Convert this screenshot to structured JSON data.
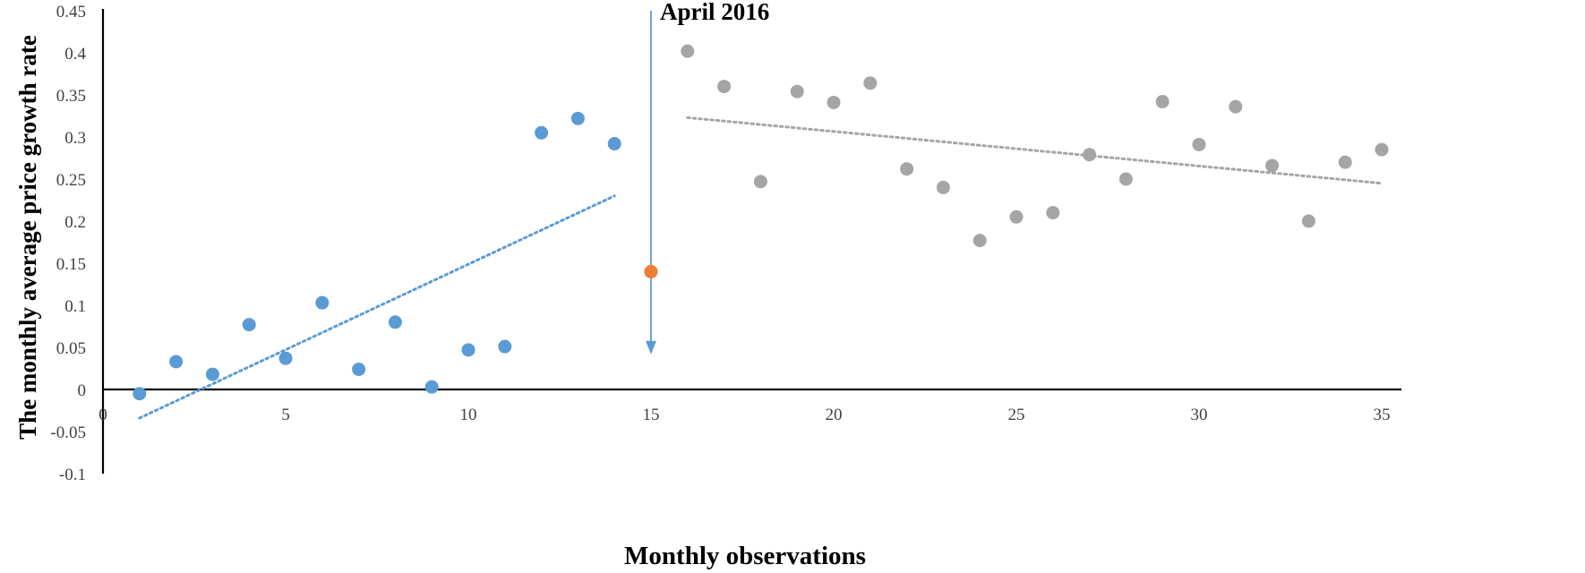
{
  "chart_data": {
    "type": "scatter",
    "title": "",
    "xlabel": "Monthly observations",
    "ylabel": "The monthly average price growth rate",
    "xlim": [
      0,
      35
    ],
    "ylim": [
      -0.1,
      0.45
    ],
    "x_ticks": [
      0,
      5,
      10,
      15,
      20,
      25,
      30,
      35
    ],
    "y_ticks": [
      -0.1,
      -0.05,
      0,
      0.05,
      0.1,
      0.15,
      0.2,
      0.25,
      0.3,
      0.35,
      0.4,
      0.45
    ],
    "grid": false,
    "legend": "none",
    "series": [
      {
        "color": "#5b9bd5",
        "x": [
          1,
          2,
          3,
          4,
          5,
          6,
          7,
          8,
          9,
          10,
          11,
          12,
          13,
          14
        ],
        "y": [
          -0.005,
          0.033,
          0.018,
          0.077,
          0.037,
          0.103,
          0.024,
          0.08,
          0.003,
          0.047,
          0.051,
          0.305,
          0.322,
          0.292
        ]
      },
      {
        "color": "#ed7d31",
        "x": [
          15
        ],
        "y": [
          0.14
        ]
      },
      {
        "color": "#a5a5a5",
        "x": [
          16,
          17,
          18,
          19,
          20,
          21,
          22,
          23,
          24,
          25,
          26,
          27,
          28,
          29,
          30,
          31,
          32,
          33,
          34,
          35
        ],
        "y": [
          0.402,
          0.36,
          0.247,
          0.354,
          0.341,
          0.364,
          0.262,
          0.24,
          0.177,
          0.205,
          0.21,
          0.279,
          0.25,
          0.342,
          0.291,
          0.336,
          0.266,
          0.2,
          0.27,
          0.285
        ]
      }
    ],
    "trendlines": [
      {
        "color": "#5b9bd5",
        "style": "dotted",
        "x": [
          1,
          14
        ],
        "y": [
          -0.034,
          0.23
        ]
      },
      {
        "color": "#a5a5a5",
        "style": "dotted",
        "x": [
          16,
          35
        ],
        "y": [
          0.323,
          0.245
        ]
      }
    ],
    "annotations": [
      {
        "text": "April 2016",
        "arrow_x": 15,
        "arrow_y_from": 0.45,
        "arrow_y_to": 0.045,
        "color": "#5b9bd5"
      }
    ]
  }
}
